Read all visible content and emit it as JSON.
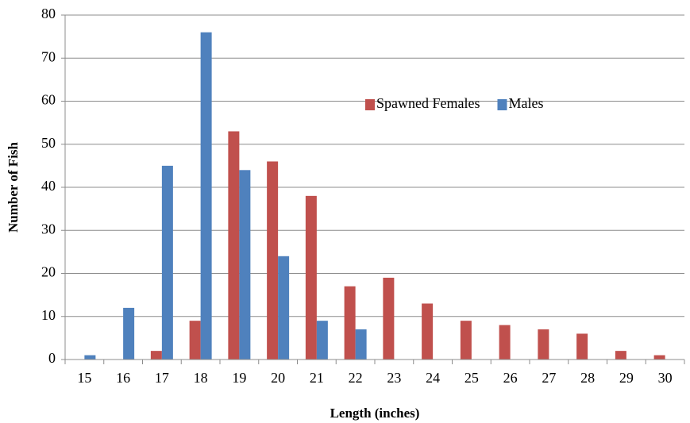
{
  "chart_data": {
    "type": "bar",
    "x_label": "Length (inches)",
    "y_label": "Number of Fish",
    "categories": [
      "15",
      "16",
      "17",
      "18",
      "19",
      "20",
      "21",
      "22",
      "23",
      "24",
      "25",
      "26",
      "27",
      "28",
      "29",
      "30"
    ],
    "series": [
      {
        "name": "Spawned Females",
        "color": "#c0504d",
        "values": [
          0,
          0,
          2,
          9,
          53,
          46,
          38,
          17,
          19,
          13,
          9,
          8,
          7,
          6,
          2,
          1
        ]
      },
      {
        "name": "Males",
        "color": "#4f81bd",
        "values": [
          1,
          12,
          45,
          76,
          44,
          24,
          9,
          7,
          0,
          0,
          0,
          0,
          0,
          0,
          0,
          0
        ]
      }
    ],
    "ylim": [
      0,
      80
    ],
    "yticks": [
      0,
      10,
      20,
      30,
      40,
      50,
      60,
      70,
      80
    ],
    "grid": true,
    "legend": "upper right"
  }
}
